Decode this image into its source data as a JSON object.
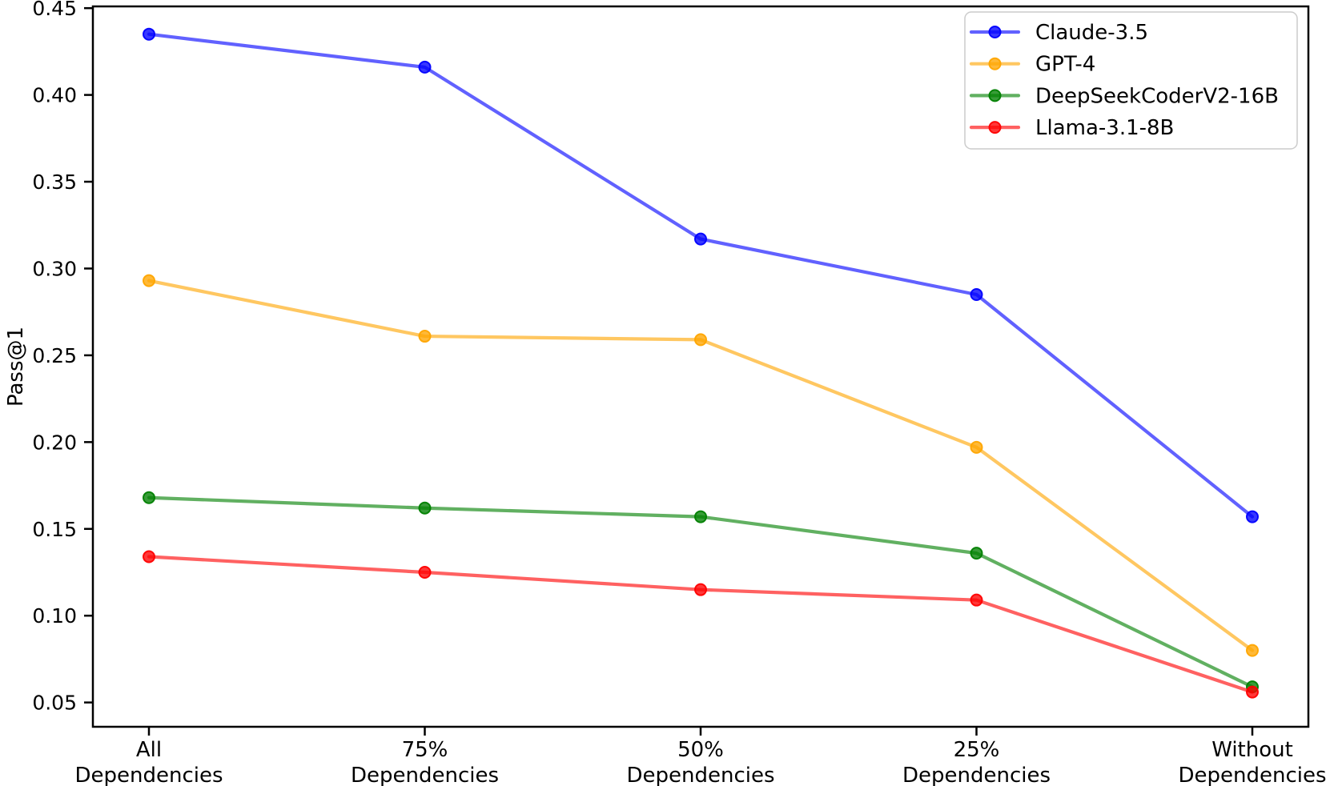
{
  "figure": {
    "background": "#ffffff"
  },
  "chart_data": {
    "type": "line",
    "title": "",
    "xlabel": "",
    "ylabel": "Pass@1",
    "categories": [
      "All\nDependencies",
      "75%\nDependencies",
      "50%\nDependencies",
      "25%\nDependencies",
      "Without\nDependencies"
    ],
    "series": [
      {
        "name": "Claude-3.5",
        "color": "#0000ff",
        "values": [
          0.435,
          0.416,
          0.317,
          0.285,
          0.157
        ]
      },
      {
        "name": "GPT-4",
        "color": "#ffa500",
        "values": [
          0.293,
          0.261,
          0.259,
          0.197,
          0.08
        ]
      },
      {
        "name": "DeepSeekCoderV2-16B",
        "color": "#008000",
        "values": [
          0.168,
          0.162,
          0.157,
          0.136,
          0.059
        ]
      },
      {
        "name": "Llama-3.1-8B",
        "color": "#ff0000",
        "values": [
          0.134,
          0.125,
          0.115,
          0.109,
          0.056
        ]
      }
    ],
    "yticks": [
      0.05,
      0.1,
      0.15,
      0.2,
      0.25,
      0.3,
      0.35,
      0.4,
      0.45
    ],
    "ytick_format_decimals": 2,
    "ylim": [
      0.036,
      0.451
    ],
    "grid": false,
    "legend_position": "upper right",
    "axis_color": "#000000",
    "legend_border_color": "#cccccc",
    "legend_background": "#ffffff"
  }
}
